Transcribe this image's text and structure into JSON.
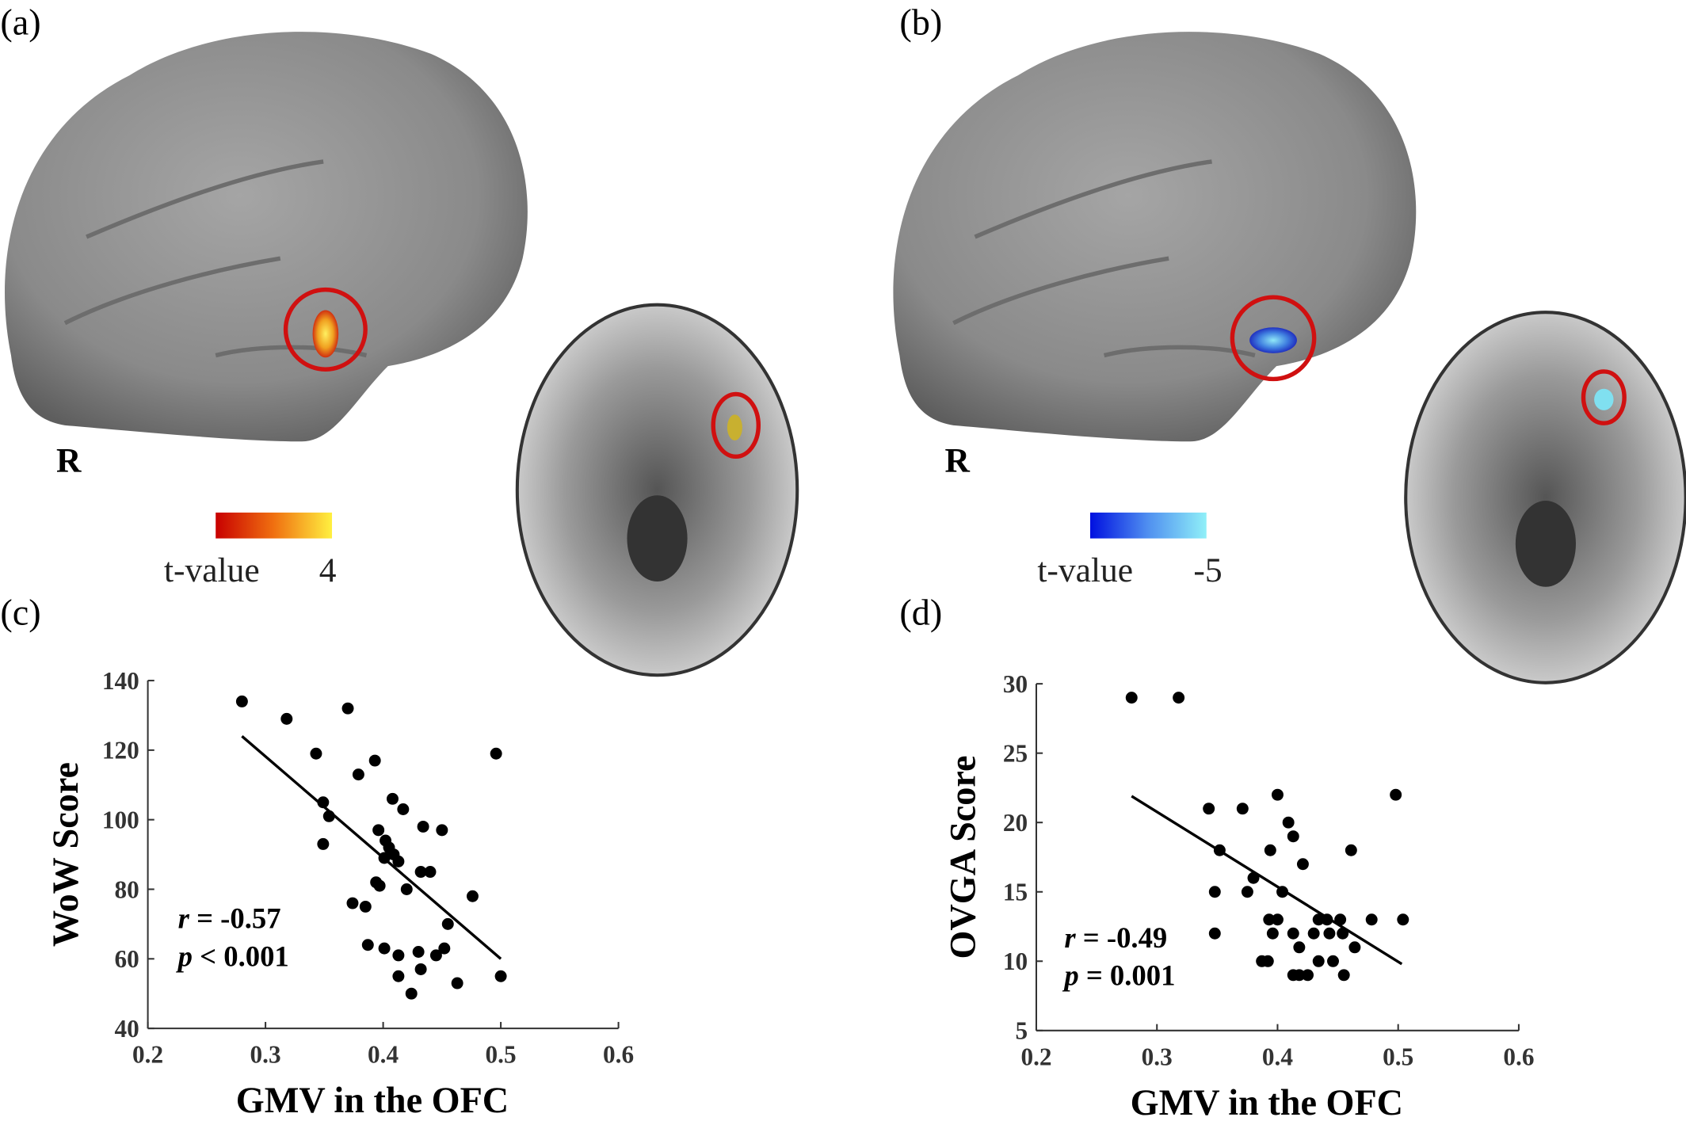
{
  "panels": [
    {
      "label": "(a)",
      "side_label": "R",
      "colorbar": {
        "label": "t-value",
        "value": 4
      }
    },
    {
      "label": "(b)",
      "side_label": "R",
      "colorbar": {
        "label": "t-value",
        "value": -5
      }
    },
    {
      "label": "(c)"
    },
    {
      "label": "(d)"
    }
  ],
  "chart_data": [
    {
      "type": "scatter",
      "xlabel": "GMV in the OFC",
      "ylabel": "WoW Score",
      "annotations": [
        "r = -0.57",
        "p < 0.001"
      ],
      "color": "#000000",
      "xlim": [
        0.2,
        0.6
      ],
      "ylim": [
        40,
        140
      ],
      "xticks": [
        0.2,
        0.3,
        0.4,
        0.5,
        0.6
      ],
      "yticks": [
        40,
        60,
        80,
        100,
        120,
        140
      ],
      "x": [
        0.28,
        0.318,
        0.37,
        0.343,
        0.496,
        0.379,
        0.393,
        0.408,
        0.417,
        0.434,
        0.45,
        0.349,
        0.354,
        0.349,
        0.396,
        0.402,
        0.405,
        0.409,
        0.413,
        0.401,
        0.432,
        0.44,
        0.394,
        0.397,
        0.42,
        0.476,
        0.374,
        0.385,
        0.455,
        0.387,
        0.401,
        0.413,
        0.43,
        0.445,
        0.452,
        0.413,
        0.432,
        0.463,
        0.5,
        0.424
      ],
      "y": [
        134,
        129,
        132,
        119,
        119,
        113,
        117,
        106,
        103,
        98,
        97,
        105,
        101,
        93,
        97,
        94,
        92,
        90,
        88,
        89,
        85,
        85,
        82,
        81,
        80,
        78,
        76,
        75,
        70,
        64,
        63,
        61,
        62,
        61,
        63,
        55,
        57,
        53,
        55,
        50
      ],
      "fit": {
        "x": [
          0.28,
          0.5
        ],
        "y": [
          124,
          60
        ]
      }
    },
    {
      "type": "scatter",
      "xlabel": "GMV in the OFC",
      "ylabel": "OVGA Score",
      "annotations": [
        "r = -0.49",
        "p = 0.001"
      ],
      "color": "#000000",
      "xlim": [
        0.2,
        0.6
      ],
      "ylim": [
        5,
        30
      ],
      "xticks": [
        0.2,
        0.3,
        0.4,
        0.5,
        0.6
      ],
      "yticks": [
        5,
        10,
        15,
        20,
        25,
        30
      ],
      "x": [
        0.279,
        0.318,
        0.343,
        0.371,
        0.4,
        0.498,
        0.409,
        0.413,
        0.394,
        0.352,
        0.461,
        0.421,
        0.38,
        0.348,
        0.375,
        0.404,
        0.393,
        0.4,
        0.434,
        0.441,
        0.452,
        0.478,
        0.504,
        0.348,
        0.396,
        0.413,
        0.43,
        0.443,
        0.454,
        0.418,
        0.464,
        0.387,
        0.392,
        0.434,
        0.446,
        0.413,
        0.418,
        0.425,
        0.455
      ],
      "y": [
        29,
        29,
        21,
        21,
        22,
        22,
        20,
        19,
        18,
        18,
        18,
        17,
        16,
        15,
        15,
        15,
        13,
        13,
        13,
        13,
        13,
        13,
        13,
        12,
        12,
        12,
        12,
        12,
        12,
        11,
        11,
        10,
        10,
        10,
        10,
        9,
        9,
        9,
        9
      ],
      "fit": {
        "x": [
          0.279,
          0.503
        ],
        "y": [
          21.9,
          9.8
        ]
      }
    }
  ]
}
